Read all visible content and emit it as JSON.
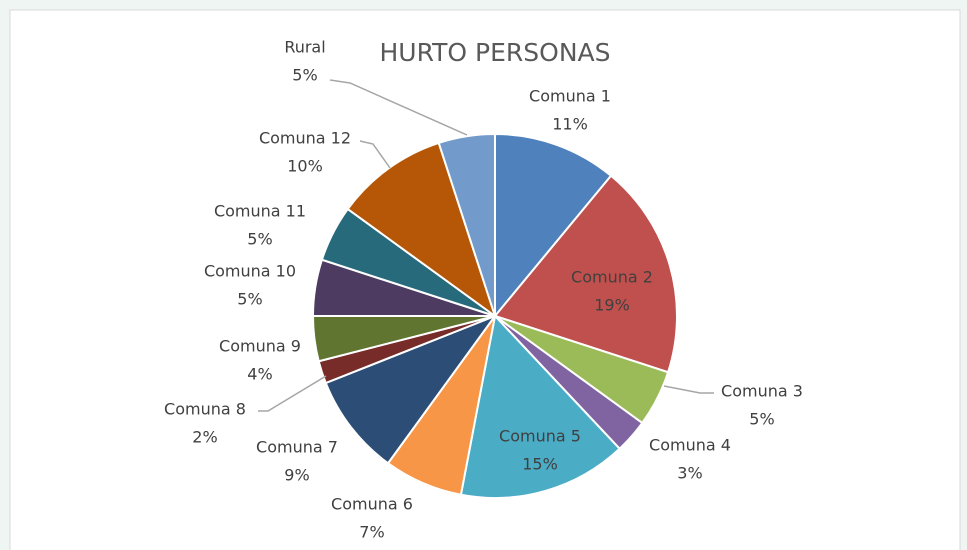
{
  "chart_data": {
    "type": "pie",
    "title": "HURTO PERSONAS",
    "categories": [
      "Comuna 1",
      "Comuna 2",
      "Comuna 3",
      "Comuna 4",
      "Comuna 5",
      "Comuna 6",
      "Comuna 7",
      "Comuna 8",
      "Comuna 9",
      "Comuna 10",
      "Comuna 11",
      "Comuna 12",
      "Rural"
    ],
    "values": [
      11,
      19,
      5,
      3,
      15,
      7,
      9,
      2,
      4,
      5,
      5,
      10,
      5
    ],
    "value_labels": [
      "11%",
      "19%",
      "5%",
      "3%",
      "15%",
      "7%",
      "9%",
      "2%",
      "4%",
      "5%",
      "5%",
      "10%",
      "5%"
    ],
    "colors": [
      "#4f81bd",
      "#c0504d",
      "#9bbb59",
      "#8064a2",
      "#4bacc6",
      "#f79646",
      "#2c4d75",
      "#772c2a",
      "#5f7530",
      "#4d3b62",
      "#276a7c",
      "#b65708",
      "#729aca"
    ]
  }
}
